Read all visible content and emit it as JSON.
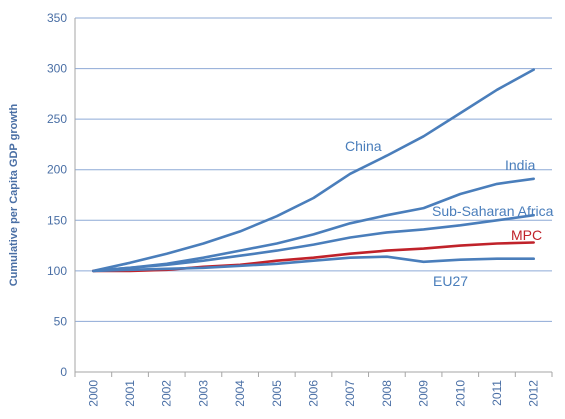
{
  "chart_data": {
    "type": "line",
    "title": "",
    "xlabel": "",
    "ylabel": "Cumulative per Capita GDP growth",
    "x": [
      "2000",
      "2001",
      "2002",
      "2003",
      "2004",
      "2005",
      "2006",
      "2007",
      "2008",
      "2009",
      "2010",
      "2011",
      "2012"
    ],
    "ylim": [
      0,
      350
    ],
    "yticks": [
      0,
      50,
      100,
      150,
      200,
      250,
      300,
      350
    ],
    "grid": true,
    "series": [
      {
        "name": "China",
        "color": "#4a7ebb",
        "values": [
          100,
          108,
          117,
          127,
          139,
          154,
          172,
          196,
          214,
          233,
          256,
          279,
          299
        ]
      },
      {
        "name": "India",
        "color": "#4a7ebb",
        "values": [
          100,
          103,
          107,
          113,
          120,
          127,
          136,
          147,
          155,
          162,
          176,
          186,
          191
        ]
      },
      {
        "name": "Sub-Saharan Africa",
        "color": "#4a7ebb",
        "values": [
          100,
          103,
          106,
          110,
          115,
          120,
          126,
          133,
          138,
          141,
          145,
          150,
          155
        ]
      },
      {
        "name": "MPC",
        "color": "#c0222a",
        "values": [
          100,
          100,
          101,
          104,
          106,
          110,
          113,
          117,
          120,
          122,
          125,
          127,
          128
        ]
      },
      {
        "name": "EU27",
        "color": "#4a7ebb",
        "values": [
          100,
          101,
          102,
          103,
          105,
          107,
          110,
          113,
          114,
          109,
          111,
          112,
          112
        ]
      }
    ]
  }
}
